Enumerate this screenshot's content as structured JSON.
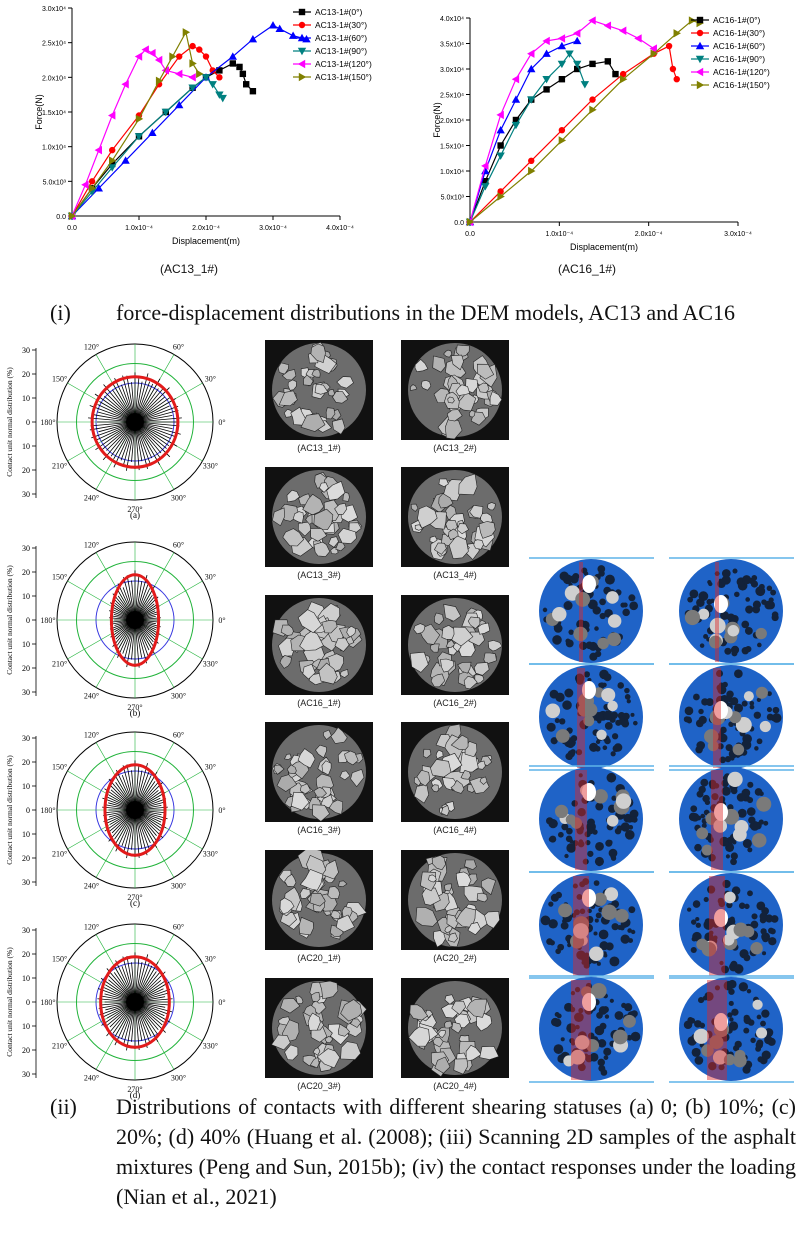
{
  "chart_data": [
    {
      "type": "line",
      "title": "",
      "xlabel": "Displacement(m)",
      "ylabel": "Force(N)",
      "xlim": [
        0,
        0.0004
      ],
      "ylim": [
        0,
        30000
      ],
      "x_ticks": [
        "0.0",
        "1.0x10⁻⁴",
        "2.0x10⁻⁴",
        "3.0x10⁻⁴",
        "4.0x10⁻⁴"
      ],
      "y_ticks": [
        "0.0",
        "5.0x10³",
        "1.0x10⁴",
        "1.5x10⁴",
        "2.0x10⁴",
        "2.5x10⁴",
        "3.0x10⁴"
      ],
      "legend_position": "top-right",
      "caption": "(AC13_1#)",
      "series": [
        {
          "name": "AC13-1#(0°)",
          "color": "#000000",
          "marker": "square",
          "x": [
            0,
            3e-05,
            6e-05,
            0.0001,
            0.00014,
            0.00018,
            0.0002,
            0.00022,
            0.00024,
            0.00025,
            0.000255,
            0.00026,
            0.00027
          ],
          "y": [
            0,
            4000,
            7500,
            11500,
            15000,
            18500,
            20000,
            21000,
            22000,
            21500,
            20500,
            19000,
            18000
          ]
        },
        {
          "name": "AC13-1#(30°)",
          "color": "#ff0000",
          "marker": "circle",
          "x": [
            0,
            3e-05,
            6e-05,
            0.0001,
            0.00013,
            0.00016,
            0.00018,
            0.00019,
            0.0002,
            0.00021,
            0.00022
          ],
          "y": [
            0,
            5000,
            9500,
            14500,
            19000,
            23000,
            24500,
            24000,
            23000,
            21000,
            20000
          ]
        },
        {
          "name": "AC13-1#(60°)",
          "color": "#0000ff",
          "marker": "triangle-up",
          "x": [
            0,
            4e-05,
            8e-05,
            0.00012,
            0.00016,
            0.0002,
            0.00024,
            0.00027,
            0.0003,
            0.00031,
            0.00033,
            0.00035
          ],
          "y": [
            0,
            4000,
            8000,
            12000,
            16000,
            20000,
            23000,
            25500,
            27500,
            27000,
            26000,
            25500
          ]
        },
        {
          "name": "AC13-1#(90°)",
          "color": "#008080",
          "marker": "triangle-down",
          "x": [
            0,
            3e-05,
            6e-05,
            0.0001,
            0.00014,
            0.00018,
            0.0002,
            0.00021,
            0.00022,
            0.000225
          ],
          "y": [
            0,
            3500,
            7000,
            11500,
            15000,
            18500,
            20000,
            19000,
            17500,
            17000
          ]
        },
        {
          "name": "AC13-1#(120°)",
          "color": "#ff00ff",
          "marker": "triangle-left",
          "x": [
            0,
            2e-05,
            4e-05,
            6e-05,
            8e-05,
            0.0001,
            0.00011,
            0.00012,
            0.00013,
            0.00014,
            0.00016,
            0.00018
          ],
          "y": [
            0,
            4500,
            9500,
            14500,
            19000,
            23000,
            24000,
            23500,
            22500,
            21000,
            20500,
            20000
          ]
        },
        {
          "name": "AC13-1#(150°)",
          "color": "#808000",
          "marker": "triangle-right",
          "x": [
            0,
            3e-05,
            6e-05,
            0.0001,
            0.00013,
            0.00015,
            0.00017,
            0.00018,
            0.00019
          ],
          "y": [
            0,
            4000,
            8000,
            14000,
            19500,
            23000,
            26500,
            22000,
            20500
          ]
        }
      ]
    },
    {
      "type": "line",
      "title": "",
      "xlabel": "Displacement(m)",
      "ylabel": "Force(N)",
      "xlim": [
        0,
        0.00035
      ],
      "ylim": [
        0,
        40000
      ],
      "x_ticks": [
        "0.0",
        "1.0x10⁻⁴",
        "2.0x10⁻⁴",
        "3.0x10⁻⁴"
      ],
      "y_ticks": [
        "0.0",
        "5.0x10³",
        "1.0x10⁴",
        "1.5x10⁴",
        "2.0x10⁴",
        "2.5x10⁴",
        "3.0x10⁴",
        "3.5x10⁴",
        "4.0x10⁴"
      ],
      "legend_position": "top-right",
      "caption": "(AC16_1#)",
      "series": [
        {
          "name": "AC16-1#(0°)",
          "color": "#000000",
          "marker": "square",
          "x": [
            0,
            2e-05,
            4e-05,
            6e-05,
            8e-05,
            0.0001,
            0.00012,
            0.00014,
            0.00016,
            0.00018,
            0.00019
          ],
          "y": [
            0,
            8000,
            15000,
            20000,
            24000,
            26000,
            28000,
            30000,
            31000,
            31500,
            29000
          ]
        },
        {
          "name": "AC16-1#(30°)",
          "color": "#ff0000",
          "marker": "circle",
          "x": [
            0,
            4e-05,
            8e-05,
            0.00012,
            0.00016,
            0.0002,
            0.00024,
            0.00026,
            0.000265,
            0.00027
          ],
          "y": [
            0,
            6000,
            12000,
            18000,
            24000,
            29000,
            33000,
            34500,
            30000,
            28000
          ]
        },
        {
          "name": "AC16-1#(60°)",
          "color": "#0000ff",
          "marker": "triangle-up",
          "x": [
            0,
            2e-05,
            4e-05,
            6e-05,
            8e-05,
            0.0001,
            0.00012,
            0.00014
          ],
          "y": [
            0,
            10000,
            18000,
            24000,
            30000,
            33000,
            34500,
            35500
          ]
        },
        {
          "name": "AC16-1#(90°)",
          "color": "#008080",
          "marker": "triangle-down",
          "x": [
            0,
            2e-05,
            4e-05,
            6e-05,
            8e-05,
            0.0001,
            0.00012,
            0.00013,
            0.00014,
            0.00015
          ],
          "y": [
            0,
            7000,
            13000,
            19000,
            24000,
            28000,
            31000,
            33000,
            31000,
            27000
          ]
        },
        {
          "name": "AC16-1#(120°)",
          "color": "#ff00ff",
          "marker": "triangle-left",
          "x": [
            0,
            2e-05,
            4e-05,
            6e-05,
            8e-05,
            0.0001,
            0.00012,
            0.00014,
            0.00016,
            0.00018,
            0.0002,
            0.00022,
            0.00024
          ],
          "y": [
            0,
            11000,
            21000,
            28000,
            33000,
            35500,
            36000,
            37000,
            39500,
            38500,
            37500,
            36000,
            34000
          ]
        },
        {
          "name": "AC16-1#(150°)",
          "color": "#808000",
          "marker": "triangle-right",
          "x": [
            0,
            4e-05,
            8e-05,
            0.00012,
            0.00016,
            0.0002,
            0.00024,
            0.00027,
            0.00029,
            0.0003
          ],
          "y": [
            0,
            5000,
            10000,
            16000,
            22000,
            28000,
            33000,
            37000,
            39500,
            39000
          ]
        }
      ]
    },
    {
      "type": "polar",
      "series_names": [],
      "ylabel": "Contact unit normal distribution (%)",
      "radial_ticks": [
        "30",
        "20",
        "10",
        "0",
        "10",
        "20",
        "30"
      ],
      "angle_labels": [
        "0°",
        "30°",
        "60°",
        "90°",
        "120°",
        "150°",
        "180°",
        "210°",
        "240°",
        "270°",
        "300°",
        "330°"
      ],
      "panels": [
        {
          "label": "(a)",
          "shape_ratio": 1.0
        },
        {
          "label": "(b)",
          "shape_ratio": 0.55
        },
        {
          "label": "(c)",
          "shape_ratio": 0.7
        },
        {
          "label": "(d)",
          "shape_ratio": 0.8
        }
      ]
    }
  ],
  "captions": {
    "part_i_num": "(i)",
    "part_i_text": "force-displacement distributions in the DEM models, AC13 and AC16",
    "part_ii_num": "(ii)",
    "part_ii_text": "Distributions of contacts with different shearing statuses (a) 0; (b) 10%; (c) 20%; (d) 40% (Huang et al. (2008); (iii) Scanning 2D samples of the asphalt mixtures (Peng and Sun, 2015b); (iv) the contact responses under the loading (Nian et al., 2021)"
  },
  "scans": [
    [
      "(AC13_1#)",
      "(AC13_2#)"
    ],
    [
      "(AC13_3#)",
      "(AC13_4#)"
    ],
    [
      "(AC16_1#)",
      "(AC16_2#)"
    ],
    [
      "(AC16_3#)",
      "(AC16_4#)"
    ],
    [
      "(AC20_1#)",
      "(AC20_2#)"
    ],
    [
      "(AC20_3#)",
      "(AC20_4#)"
    ]
  ]
}
